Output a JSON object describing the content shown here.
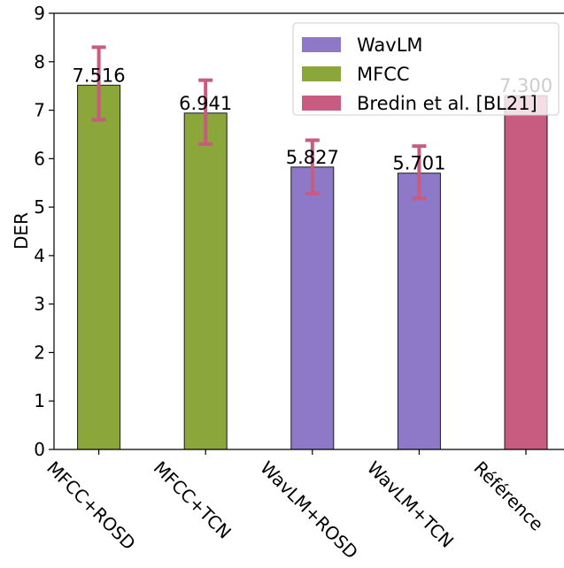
{
  "chart_data": {
    "type": "bar",
    "title": "",
    "xlabel": "",
    "ylabel": "DER",
    "ylim": [
      0,
      9
    ],
    "yticks": [
      0,
      1,
      2,
      3,
      4,
      5,
      6,
      7,
      8,
      9
    ],
    "grid": false,
    "legend_position": "top-right",
    "categories": [
      "MFCC+ROSD",
      "MFCC+TCN",
      "WavLM+ROSD",
      "WavLM+TCN",
      "Référence"
    ],
    "bars": [
      {
        "category": "MFCC+ROSD",
        "value": 7.516,
        "label": "7.516",
        "group": "MFCC",
        "error": [
          6.8,
          8.3
        ]
      },
      {
        "category": "MFCC+TCN",
        "value": 6.941,
        "label": "6.941",
        "group": "MFCC",
        "error": [
          6.3,
          7.62
        ]
      },
      {
        "category": "WavLM+ROSD",
        "value": 5.827,
        "label": "5.827",
        "group": "WavLM",
        "error": [
          5.28,
          6.38
        ]
      },
      {
        "category": "WavLM+TCN",
        "value": 5.701,
        "label": "5.701",
        "group": "WavLM",
        "error": [
          5.18,
          6.26
        ]
      },
      {
        "category": "Référence",
        "value": 7.3,
        "label": "7.300",
        "group": "Bredin et al. [BL21]",
        "error": null
      }
    ],
    "legend": [
      {
        "name": "WavLM",
        "color": "#8e79c9"
      },
      {
        "name": "MFCC",
        "color": "#8ba63b"
      },
      {
        "name": "Bredin et al. [BL21]",
        "color": "#c75b80"
      }
    ],
    "error_color": "#c75b80"
  }
}
